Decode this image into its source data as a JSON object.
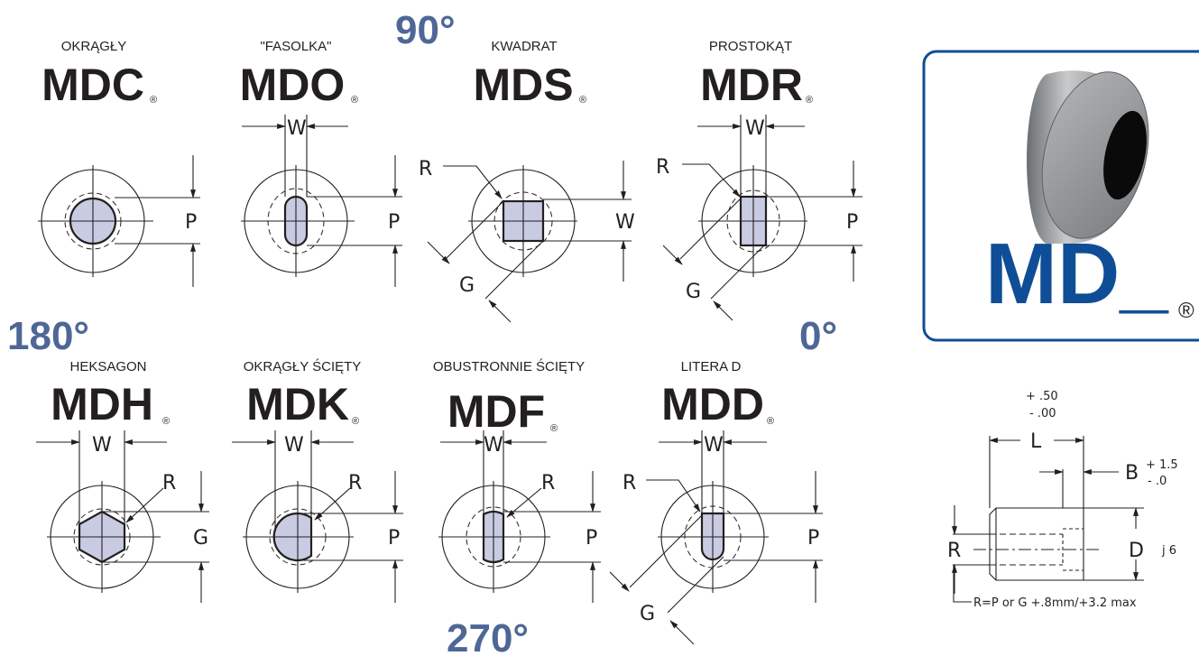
{
  "angles": {
    "a90": "90°",
    "a180": "180°",
    "a0": "0°",
    "a270": "270°"
  },
  "registered": "®",
  "shapes": [
    {
      "name": "OKRĄGŁY",
      "code": "MDC",
      "dims": [
        "P"
      ]
    },
    {
      "name": "\"FASOLKA\"",
      "code": "MDO",
      "dims": [
        "W",
        "P"
      ]
    },
    {
      "name": "KWADRAT",
      "code": "MDS",
      "dims": [
        "R",
        "W",
        "G"
      ]
    },
    {
      "name": "PROSTOKĄT",
      "code": "MDR",
      "dims": [
        "W",
        "R",
        "P",
        "G"
      ]
    },
    {
      "name": "HEKSAGON",
      "code": "MDH",
      "dims": [
        "W",
        "R",
        "G"
      ]
    },
    {
      "name": "OKRĄGŁY ŚCIĘTY",
      "code": "MDK",
      "dims": [
        "W",
        "R",
        "P"
      ]
    },
    {
      "name": "OBUSTRONNIE ŚCIĘTY",
      "code": "MDF",
      "dims": [
        "W",
        "R",
        "P"
      ]
    },
    {
      "name": "LITERA D",
      "code": "MDD",
      "dims": [
        "W",
        "R",
        "P",
        "G"
      ]
    }
  ],
  "product": {
    "code": "MD_",
    "registered": "®"
  },
  "profile": {
    "l_tol_plus": "+ .50",
    "l_tol_minus": "- .00",
    "L": "L",
    "B": "B",
    "b_tol_plus": "+ 1.5",
    "b_tol_minus": "- .0",
    "R": "R",
    "D": "D",
    "fit": "j 6",
    "formula": "R=P or G +.8mm/+3.2 max"
  },
  "colors": {
    "accent_angle": "#4e6797",
    "brand": "#0f4e96",
    "hole_fill": "#c9cbe3"
  }
}
